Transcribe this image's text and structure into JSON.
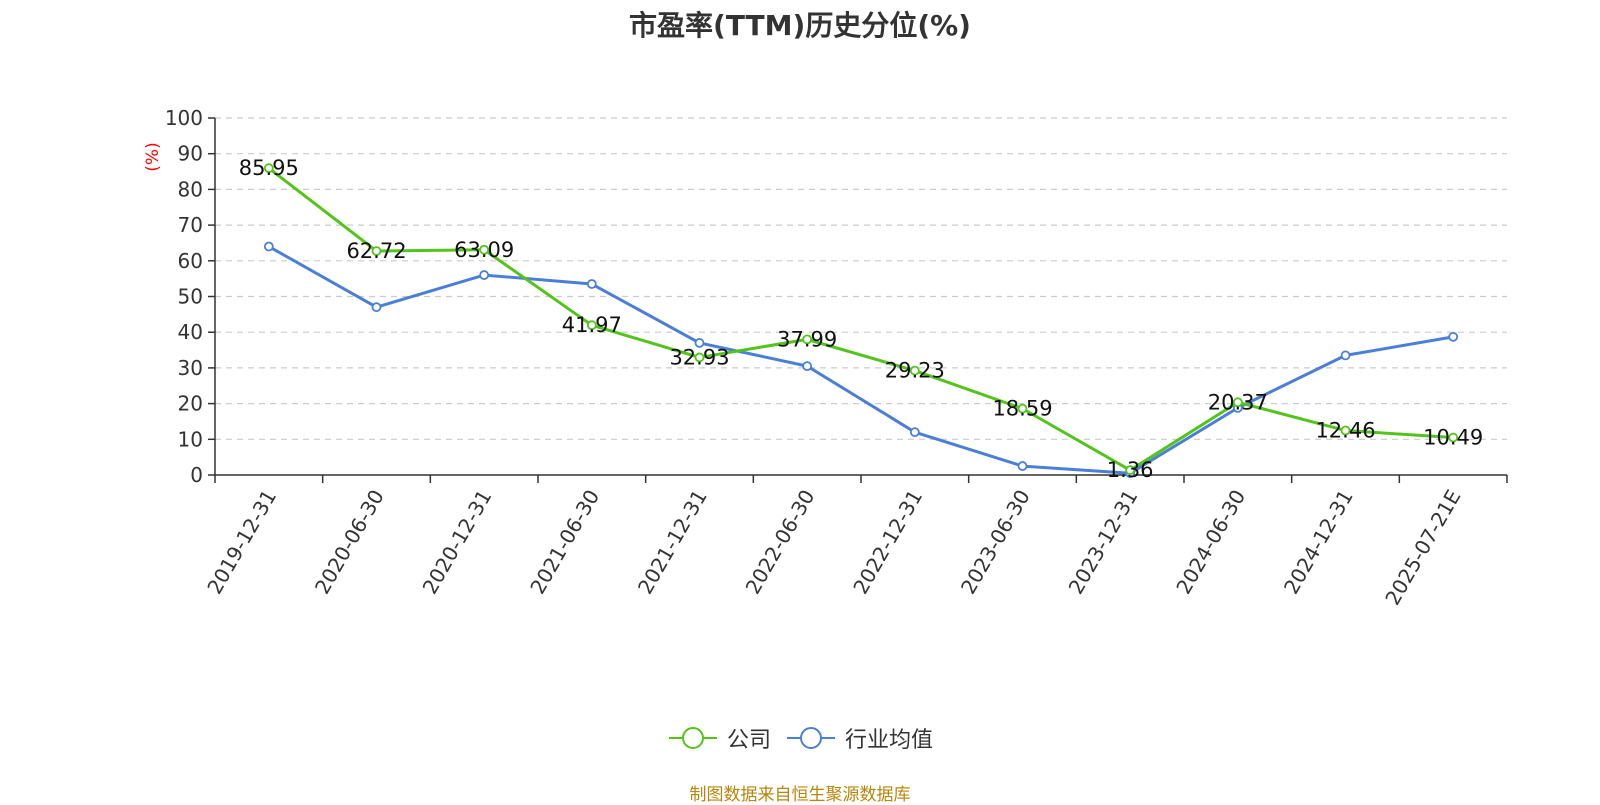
{
  "chart_data": {
    "type": "line",
    "title": "市盈率(TTM)历史分位(%)",
    "ylabel": "(%)",
    "xlabel": "",
    "categories": [
      "2019-12-31",
      "2020-06-30",
      "2020-12-31",
      "2021-06-30",
      "2021-12-31",
      "2022-06-30",
      "2022-12-31",
      "2023-06-30",
      "2023-12-31",
      "2024-06-30",
      "2024-12-31",
      "2025-07-21E"
    ],
    "ylim": [
      0,
      100
    ],
    "yticks": [
      0,
      10,
      20,
      30,
      40,
      50,
      60,
      70,
      80,
      90,
      100
    ],
    "grid": true,
    "legend_position": "bottom-center",
    "series": [
      {
        "name": "公司",
        "color": "#52c41a",
        "values": [
          85.95,
          62.72,
          63.09,
          41.97,
          32.93,
          37.99,
          29.23,
          18.59,
          1.36,
          20.37,
          12.46,
          10.49
        ],
        "data_labels": [
          "85.95",
          "62.72",
          "63.09",
          "41.97",
          "32.93",
          "37.99",
          "29.23",
          "18.59",
          "1.36",
          "20.37",
          "12.46",
          "10.49"
        ]
      },
      {
        "name": "行业均值",
        "color": "#4a7fd8",
        "values": [
          64.0,
          47.0,
          56.0,
          53.5,
          37.0,
          30.5,
          12.0,
          2.5,
          0.5,
          18.8,
          33.5,
          38.7
        ]
      }
    ]
  },
  "footer": {
    "source": "制图数据来自恒生聚源数据库"
  }
}
